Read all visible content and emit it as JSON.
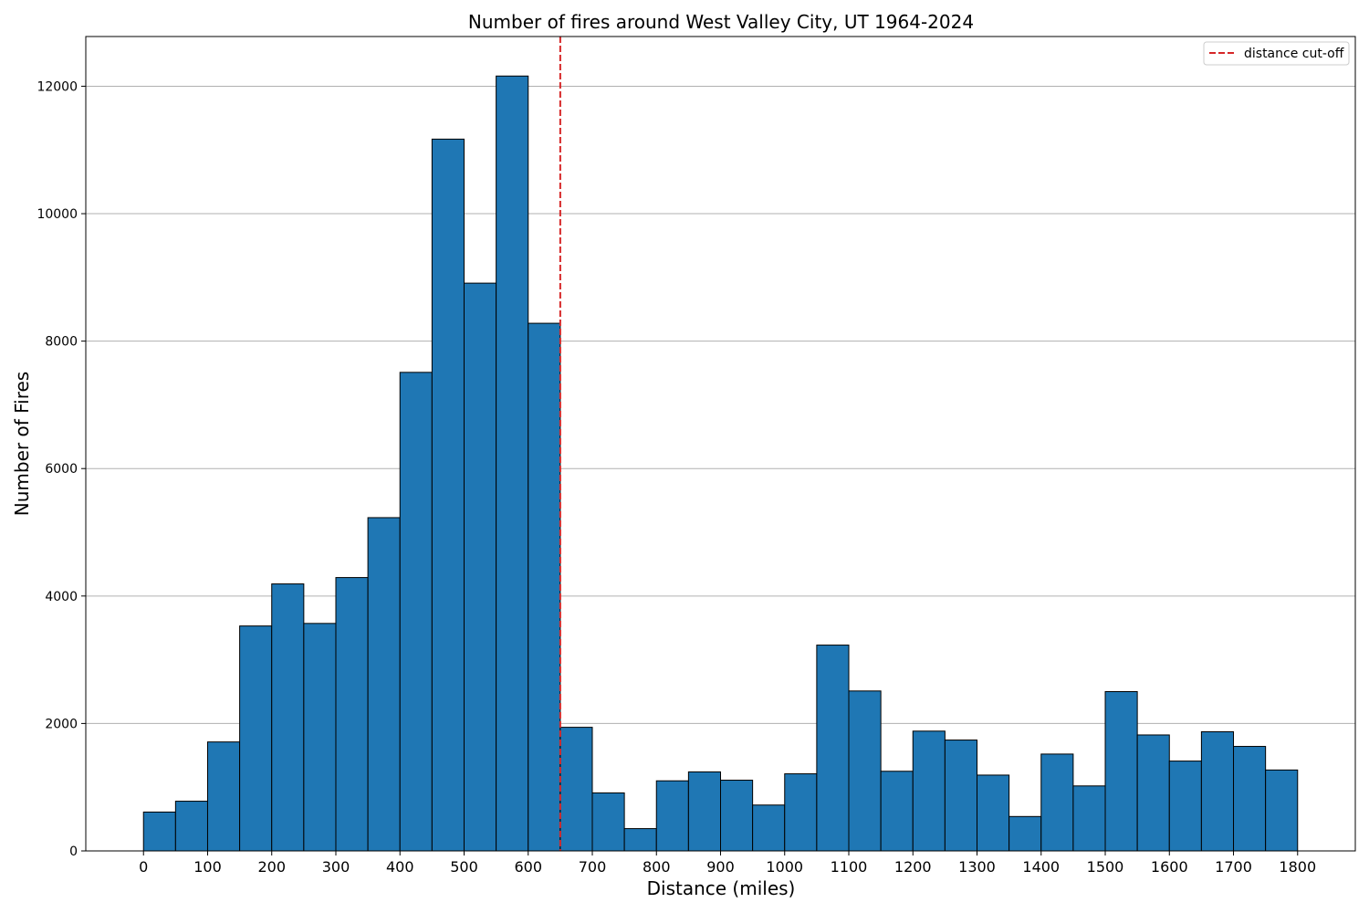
{
  "chart_data": {
    "type": "bar",
    "title": "Number of fires around West Valley City, UT 1964-2024",
    "xlabel": "Distance (miles)",
    "ylabel": "Number of Fires",
    "bin_width": 50,
    "bin_starts": [
      0,
      50,
      100,
      150,
      200,
      250,
      300,
      350,
      400,
      450,
      500,
      550,
      600,
      650,
      700,
      750,
      800,
      850,
      900,
      950,
      1000,
      1050,
      1100,
      1150,
      1200,
      1250,
      1300,
      1350,
      1400,
      1450,
      1500,
      1550,
      1600,
      1650,
      1700,
      1750
    ],
    "values": [
      610,
      780,
      1710,
      3530,
      4190,
      3570,
      4290,
      5230,
      7510,
      11170,
      8910,
      12160,
      8280,
      1940,
      910,
      350,
      1100,
      1240,
      1110,
      720,
      1210,
      3230,
      2510,
      1250,
      1880,
      1740,
      1190,
      540,
      1520,
      1020,
      2500,
      1820,
      1410,
      1870,
      1640,
      1270
    ],
    "xlim": [
      -90,
      1890
    ],
    "ylim": [
      0,
      12780
    ],
    "xticks": [
      0,
      100,
      200,
      300,
      400,
      500,
      600,
      700,
      800,
      900,
      1000,
      1100,
      1200,
      1300,
      1400,
      1500,
      1600,
      1700,
      1800
    ],
    "yticks": [
      0,
      2000,
      4000,
      6000,
      8000,
      10000,
      12000
    ],
    "cutoff": 650,
    "legend": {
      "label": "distance cut-off",
      "position": "top-right"
    },
    "grid": "y",
    "colors": {
      "bar": "#1f77b4",
      "bar_edge": "#000000",
      "cutoff": "#d62728",
      "grid": "#b0b0b0"
    }
  }
}
